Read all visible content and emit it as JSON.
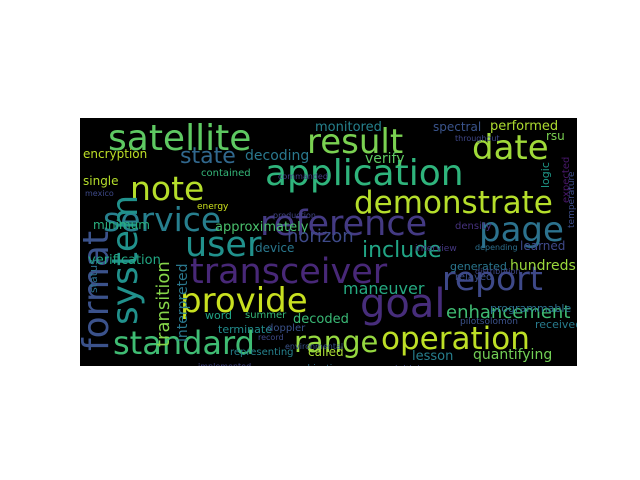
{
  "words": [
    {
      "text": "satellite",
      "color": "#5ec962"
    },
    {
      "text": "result",
      "color": "#7ad151"
    },
    {
      "text": "date",
      "color": "#a0da39"
    },
    {
      "text": "application",
      "color": "#2fb47c"
    },
    {
      "text": "note",
      "color": "#b5de2b"
    },
    {
      "text": "state",
      "color": "#31688e"
    },
    {
      "text": "demonstrate",
      "color": "#b5de2b"
    },
    {
      "text": "service",
      "color": "#277f8e"
    },
    {
      "text": "reference",
      "color": "#443a83"
    },
    {
      "text": "page",
      "color": "#2c728e"
    },
    {
      "text": "user",
      "color": "#21918c"
    },
    {
      "text": "include",
      "color": "#21a585"
    },
    {
      "text": "format",
      "color": "#3b528b"
    },
    {
      "text": "system",
      "color": "#21918c"
    },
    {
      "text": "transceiver",
      "color": "#482878"
    },
    {
      "text": "report",
      "color": "#3e4989"
    },
    {
      "text": "provide",
      "color": "#c8e020"
    },
    {
      "text": "goal",
      "color": "#472d7b"
    },
    {
      "text": "standard",
      "color": "#3fbc73"
    },
    {
      "text": "range",
      "color": "#95d840"
    },
    {
      "text": "operation",
      "color": "#bddf26"
    },
    {
      "text": "transition",
      "color": "#86d549"
    },
    {
      "text": "interpreted",
      "color": "#2a788e"
    },
    {
      "text": "monitored",
      "color": "#26828e"
    },
    {
      "text": "performed",
      "color": "#addc30"
    },
    {
      "text": "encryption",
      "color": "#bddf26"
    },
    {
      "text": "decoding",
      "color": "#2a788e"
    },
    {
      "text": "verify",
      "color": "#5ec962"
    },
    {
      "text": "minimum",
      "color": "#29af7f"
    },
    {
      "text": "verification",
      "color": "#22a884"
    },
    {
      "text": "approximately",
      "color": "#4ac16d"
    },
    {
      "text": "horizon",
      "color": "#3e4a89"
    },
    {
      "text": "contained",
      "color": "#35b779"
    },
    {
      "text": "device",
      "color": "#2a788e"
    },
    {
      "text": "single",
      "color": "#b5de2b"
    },
    {
      "text": "learned",
      "color": "#3e4989"
    },
    {
      "text": "hundreds",
      "color": "#9bd93c"
    },
    {
      "text": "maneuver",
      "color": "#25ab82"
    },
    {
      "text": "enhancement",
      "color": "#3fbc73"
    },
    {
      "text": "generated",
      "color": "#2a768e"
    },
    {
      "text": "word",
      "color": "#20a386"
    },
    {
      "text": "decoded",
      "color": "#3aba76"
    },
    {
      "text": "summer",
      "color": "#35b779"
    },
    {
      "text": "terminate",
      "color": "#228c8d"
    },
    {
      "text": "doppler",
      "color": "#3b528b"
    },
    {
      "text": "received",
      "color": "#287c8e"
    },
    {
      "text": "programmable",
      "color": "#2c718e"
    },
    {
      "text": "quantifying",
      "color": "#73d056"
    },
    {
      "text": "called",
      "color": "#a8db34"
    },
    {
      "text": "lesson",
      "color": "#277f8e"
    },
    {
      "text": "status",
      "color": "#2d708e"
    },
    {
      "text": "representing",
      "color": "#26828e"
    },
    {
      "text": "expected",
      "color": "#48186a"
    },
    {
      "text": "spectral",
      "color": "#3a548c"
    },
    {
      "text": "logic",
      "color": "#1f9a8a"
    },
    {
      "text": "density",
      "color": "#46327e"
    },
    {
      "text": "relayed",
      "color": "#3c4f8a"
    },
    {
      "text": "energy",
      "color": "#cde11d"
    },
    {
      "text": "objective",
      "color": "#2e6e8e"
    },
    {
      "text": "initial",
      "color": "#3e4989"
    },
    {
      "text": "pilotsolomon",
      "color": "#3b528b"
    },
    {
      "text": "interview",
      "color": "#453882"
    },
    {
      "text": "distribution",
      "color": "#3f4889"
    },
    {
      "text": "production",
      "color": "#414487"
    },
    {
      "text": "record",
      "color": "#3e4a89"
    },
    {
      "text": "environmental",
      "color": "#3a538b"
    },
    {
      "text": "implemented",
      "color": "#404588"
    },
    {
      "text": "throughout",
      "color": "#3f4788"
    },
    {
      "text": "rsu",
      "color": "#7ad151"
    },
    {
      "text": "depending",
      "color": "#2d708e"
    },
    {
      "text": "commanded",
      "color": "#433e85"
    },
    {
      "text": "temperature",
      "color": "#3d4d8a"
    },
    {
      "text": "mexico",
      "color": "#3e4a89"
    }
  ]
}
